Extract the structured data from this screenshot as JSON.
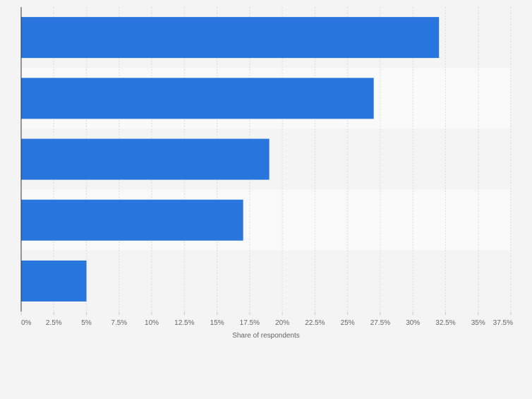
{
  "chart_data": {
    "type": "bar",
    "orientation": "horizontal",
    "categories": [
      "",
      "",
      "",
      "",
      ""
    ],
    "values": [
      32,
      27,
      19,
      17,
      5
    ],
    "xlabel": "Share of respondents",
    "ylabel": "",
    "xlim": [
      0,
      37.5
    ],
    "x_ticks": [
      "0%",
      "2.5%",
      "5%",
      "7.5%",
      "10%",
      "12.5%",
      "15%",
      "17.5%",
      "20%",
      "22.5%",
      "25%",
      "27.5%",
      "30%",
      "32.5%",
      "35%",
      "37.5%"
    ],
    "grid": true,
    "legend": "none",
    "bar_color": "#2876dd",
    "band_colors": [
      "#f4f4f4",
      "#f9f9f9"
    ],
    "grid_color": "#dcdcdc",
    "axis_color": "#333333",
    "text_color": "#666666"
  }
}
